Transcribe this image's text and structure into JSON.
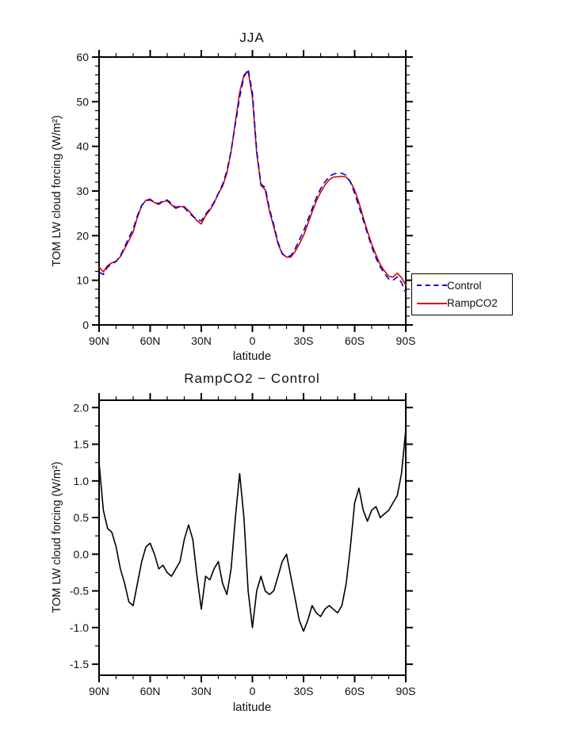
{
  "page": {
    "background": "#ffffff",
    "frame_color": "#000000",
    "text_color": "#111111"
  },
  "chart_data": [
    {
      "type": "line",
      "title": "JJA",
      "xlabel": "latitude",
      "ylabel": "TOM LW cloud forcing (W/m²)",
      "xlim": [
        90,
        -90
      ],
      "ylim": [
        0,
        60
      ],
      "grid": false,
      "legend_position": "outside-right-bottom",
      "xticks": [
        {
          "v": 90,
          "label": "90N"
        },
        {
          "v": 60,
          "label": "60N"
        },
        {
          "v": 30,
          "label": "30N"
        },
        {
          "v": 0,
          "label": "0"
        },
        {
          "v": -30,
          "label": "30S"
        },
        {
          "v": -60,
          "label": "60S"
        },
        {
          "v": -90,
          "label": "90S"
        }
      ],
      "yticks": [
        {
          "v": 0,
          "label": "0"
        },
        {
          "v": 10,
          "label": "10"
        },
        {
          "v": 20,
          "label": "20"
        },
        {
          "v": 30,
          "label": "30"
        },
        {
          "v": 40,
          "label": "40"
        },
        {
          "v": 50,
          "label": "50"
        },
        {
          "v": 60,
          "label": "60"
        }
      ],
      "x_minor_step": 10,
      "y_minor_step": 2,
      "x": [
        90,
        87.5,
        85,
        82.5,
        80,
        77.5,
        75,
        72.5,
        70,
        67.5,
        65,
        62.5,
        60,
        57.5,
        55,
        52.5,
        50,
        47.5,
        45,
        42.5,
        40,
        37.5,
        35,
        32.5,
        30,
        27.5,
        25,
        22.5,
        20,
        17.5,
        15,
        12.5,
        10,
        7.5,
        5,
        2.5,
        0,
        -2.5,
        -5,
        -7.5,
        -10,
        -12.5,
        -15,
        -17.5,
        -20,
        -22.5,
        -25,
        -27.5,
        -30,
        -32.5,
        -35,
        -37.5,
        -40,
        -42.5,
        -45,
        -47.5,
        -50,
        -52.5,
        -55,
        -57.5,
        -60,
        -62.5,
        -65,
        -67.5,
        -70,
        -72.5,
        -75,
        -77.5,
        -80,
        -82.5,
        -85,
        -87.5,
        -90
      ],
      "series": [
        {
          "name": "Control",
          "color": "#0000cc",
          "dash": "8,5",
          "values": [
            11.8,
            11.3,
            13.0,
            13.6,
            14.2,
            15.5,
            17.5,
            19.5,
            21.5,
            24.5,
            26.8,
            27.8,
            28.0,
            27.4,
            27.2,
            27.8,
            28.0,
            27.2,
            26.3,
            26.6,
            26.3,
            25.2,
            24.3,
            23.6,
            23.3,
            24.8,
            26.0,
            27.5,
            29.5,
            31.5,
            34.5,
            39.0,
            45.0,
            51.0,
            55.5,
            57.3,
            52.0,
            39.0,
            31.5,
            30.8,
            26.0,
            22.5,
            18.5,
            16.0,
            15.2,
            15.5,
            17.0,
            19.0,
            21.0,
            23.5,
            26.0,
            28.5,
            30.5,
            32.0,
            33.2,
            33.8,
            34.0,
            34.0,
            33.5,
            32.0,
            29.5,
            26.5,
            23.5,
            20.5,
            17.5,
            15.0,
            13.0,
            11.5,
            10.3,
            10.0,
            10.8,
            9.5,
            7.2
          ]
        },
        {
          "name": "RampCO2",
          "color": "#dd0000",
          "dash": null,
          "values": [
            13.0,
            11.9,
            13.3,
            13.9,
            14.3,
            15.3,
            17.1,
            18.9,
            20.8,
            24.1,
            26.7,
            27.9,
            28.2,
            27.4,
            27.0,
            27.6,
            27.8,
            26.9,
            26.1,
            26.5,
            26.5,
            25.6,
            24.5,
            23.3,
            22.6,
            24.5,
            25.7,
            27.3,
            29.4,
            31.1,
            34.0,
            38.8,
            45.5,
            52.1,
            56.0,
            56.8,
            51.0,
            38.5,
            31.2,
            30.3,
            25.5,
            22.0,
            18.2,
            15.9,
            15.2,
            15.2,
            16.4,
            18.1,
            20.0,
            22.6,
            25.3,
            27.7,
            29.7,
            31.3,
            32.5,
            33.1,
            33.2,
            33.3,
            33.1,
            32.1,
            30.2,
            27.4,
            24.1,
            21.0,
            18.1,
            15.7,
            13.5,
            12.1,
            10.9,
            10.7,
            11.6,
            10.6,
            8.9
          ]
        }
      ]
    },
    {
      "type": "line",
      "title": "RampCO2 − Control",
      "xlabel": "latitude",
      "ylabel": "TOM LW cloud forcing (W/m²)",
      "xlim": [
        90,
        -90
      ],
      "ylim": [
        -1.65,
        2.1
      ],
      "grid": false,
      "xticks": [
        {
          "v": 90,
          "label": "90N"
        },
        {
          "v": 60,
          "label": "60N"
        },
        {
          "v": 30,
          "label": "30N"
        },
        {
          "v": 0,
          "label": "0"
        },
        {
          "v": -30,
          "label": "30S"
        },
        {
          "v": -60,
          "label": "60S"
        },
        {
          "v": -90,
          "label": "90S"
        }
      ],
      "yticks": [
        {
          "v": -1.5,
          "label": "-1.5"
        },
        {
          "v": -1.0,
          "label": "-1.0"
        },
        {
          "v": -0.5,
          "label": "-0.5"
        },
        {
          "v": 0.0,
          "label": "0.0"
        },
        {
          "v": 0.5,
          "label": "0.5"
        },
        {
          "v": 1.0,
          "label": "1.0"
        },
        {
          "v": 1.5,
          "label": "1.5"
        },
        {
          "v": 2.0,
          "label": "2.0"
        }
      ],
      "x_minor_step": 10,
      "y_minor_step": 0.25,
      "x": [
        90,
        87.5,
        85,
        82.5,
        80,
        77.5,
        75,
        72.5,
        70,
        67.5,
        65,
        62.5,
        60,
        57.5,
        55,
        52.5,
        50,
        47.5,
        45,
        42.5,
        40,
        37.5,
        35,
        32.5,
        30,
        27.5,
        25,
        22.5,
        20,
        17.5,
        15,
        12.5,
        10,
        7.5,
        5,
        2.5,
        0,
        -2.5,
        -5,
        -7.5,
        -10,
        -12.5,
        -15,
        -17.5,
        -20,
        -22.5,
        -25,
        -27.5,
        -30,
        -32.5,
        -35,
        -37.5,
        -40,
        -42.5,
        -45,
        -47.5,
        -50,
        -52.5,
        -55,
        -57.5,
        -60,
        -62.5,
        -65,
        -67.5,
        -70,
        -72.5,
        -75,
        -77.5,
        -80,
        -82.5,
        -85,
        -87.5,
        -90
      ],
      "series": [
        {
          "name": "RampCO2 − Control",
          "color": "#000000",
          "dash": null,
          "values": [
            1.25,
            0.6,
            0.35,
            0.3,
            0.1,
            -0.2,
            -0.4,
            -0.65,
            -0.7,
            -0.4,
            -0.1,
            0.1,
            0.15,
            0.0,
            -0.2,
            -0.15,
            -0.25,
            -0.3,
            -0.2,
            -0.1,
            0.2,
            0.4,
            0.2,
            -0.3,
            -0.75,
            -0.3,
            -0.35,
            -0.2,
            -0.1,
            -0.4,
            -0.55,
            -0.2,
            0.5,
            1.1,
            0.5,
            -0.5,
            -1.0,
            -0.5,
            -0.3,
            -0.5,
            -0.55,
            -0.5,
            -0.3,
            -0.1,
            0.0,
            -0.3,
            -0.6,
            -0.9,
            -1.05,
            -0.9,
            -0.7,
            -0.8,
            -0.85,
            -0.75,
            -0.7,
            -0.75,
            -0.8,
            -0.7,
            -0.4,
            0.1,
            0.7,
            0.9,
            0.6,
            0.45,
            0.6,
            0.65,
            0.5,
            0.55,
            0.6,
            0.7,
            0.8,
            1.1,
            1.7
          ]
        }
      ]
    }
  ],
  "legend": {
    "entries": [
      {
        "label": "Control",
        "style": "dashed"
      },
      {
        "label": "RampCO2",
        "style": "solid"
      }
    ]
  }
}
